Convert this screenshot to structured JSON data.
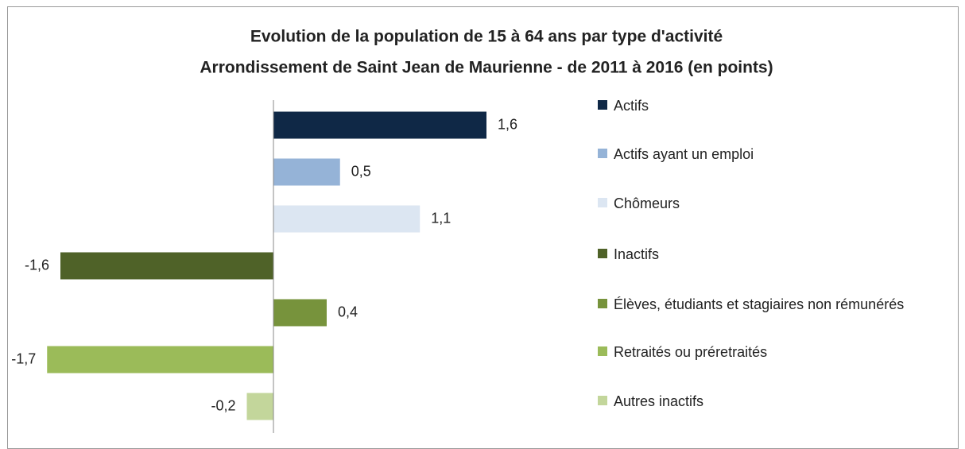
{
  "chart_data": {
    "type": "hbar",
    "title": "Evolution de la population de 15 à 64 ans par type d'activité",
    "subtitle": "Arrondissement de Saint Jean de Maurienne - de 2011 à 2016 (en points)",
    "categories": [
      "Actifs",
      "Actifs ayant un emploi",
      "Chômeurs",
      "Inactifs",
      "Élèves, étudiants et stagiaires non rémunérés",
      "Retraités ou préretraités",
      "Autres inactifs"
    ],
    "values": [
      1.6,
      0.5,
      1.1,
      -1.6,
      0.4,
      -1.7,
      -0.2
    ],
    "value_labels": [
      "1,6",
      "0,5",
      "1,1",
      "-1,6",
      "0,4",
      "-1,7",
      "-0,2"
    ],
    "colors": [
      "#0f2846",
      "#95b3d7",
      "#dce6f2",
      "#4f6228",
      "#77933c",
      "#9bbb59",
      "#c3d69b"
    ],
    "xlim": [
      -2,
      2
    ],
    "legend": "right"
  }
}
